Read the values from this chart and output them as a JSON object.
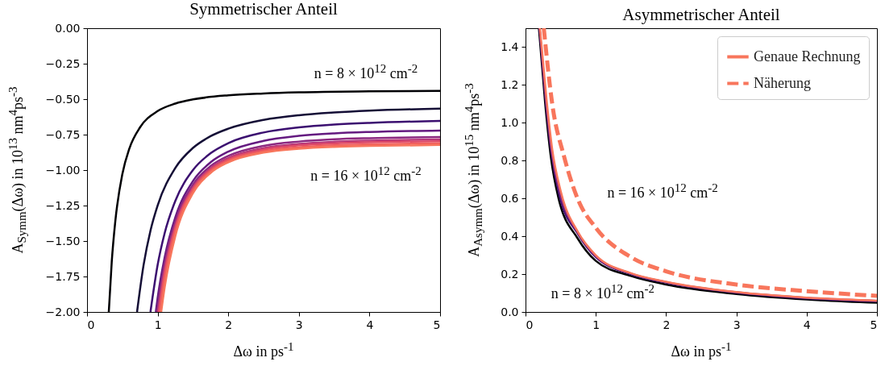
{
  "chart_data": [
    {
      "type": "line",
      "title": "Symmetrischer Anteil",
      "xlabel": "Δω in ps$^{-1}$",
      "ylabel": "A$_{Symm}$(Δω) in 10$^{13}$ nm$^{4}$ps$^{-3}$",
      "xlim": [
        0,
        5
      ],
      "ylim": [
        -2,
        0
      ],
      "xticks": [
        0,
        1,
        2,
        3,
        4,
        5
      ],
      "yticks": [
        {
          "value": 0,
          "label": "0.00"
        },
        {
          "value": -0.25,
          "label": "−0.25"
        },
        {
          "value": -0.5,
          "label": "−0.50"
        },
        {
          "value": -0.75,
          "label": "−0.75"
        },
        {
          "value": -1,
          "label": "−1.00"
        },
        {
          "value": -1.25,
          "label": "−1.25"
        },
        {
          "value": -1.5,
          "label": "−1.50"
        },
        {
          "value": -1.75,
          "label": "−1.75"
        },
        {
          "value": -2,
          "label": "−2.00"
        }
      ],
      "series": [
        {
          "color": "#000004",
          "x": [
            0.308,
            0.35,
            0.4,
            0.5,
            0.6,
            0.75,
            1,
            1.25,
            1.5,
            2,
            2.5,
            3,
            4,
            5
          ],
          "values": [
            -2.0,
            -1.644,
            -1.361,
            -1.028,
            -0.847,
            -0.699,
            -0.584,
            -0.531,
            -0.502,
            -0.473,
            -0.46,
            -0.452,
            -0.445,
            -0.442
          ]
        },
        {
          "color": "#140e36",
          "x": [
            0.708,
            0.8,
            0.9,
            1,
            1.25,
            1.5,
            1.75,
            2,
            2.5,
            3,
            3.5,
            4,
            5
          ],
          "values": [
            -2.0,
            -1.671,
            -1.423,
            -1.249,
            -0.985,
            -0.844,
            -0.761,
            -0.708,
            -0.646,
            -0.613,
            -0.594,
            -0.581,
            -0.567
          ]
        },
        {
          "color": "#3b0f70",
          "x": [
            0.898,
            1,
            1.1,
            1.25,
            1.5,
            1.75,
            2,
            2.5,
            3,
            3.5,
            4,
            5
          ],
          "values": [
            -2.0,
            -1.668,
            -1.443,
            -1.217,
            -1.0,
            -0.881,
            -0.81,
            -0.735,
            -0.699,
            -0.679,
            -0.667,
            -0.654
          ]
        },
        {
          "color": "#641a80",
          "x": [
            0.974,
            1,
            1.1,
            1.25,
            1.5,
            1.75,
            2,
            2.5,
            3,
            3.5,
            4,
            5
          ],
          "values": [
            -2.0,
            -1.9,
            -1.613,
            -1.333,
            -1.077,
            -0.945,
            -0.87,
            -0.794,
            -0.759,
            -0.741,
            -0.731,
            -0.721
          ]
        },
        {
          "color": "#8c2981",
          "x": [
            0.99,
            1.1,
            1.25,
            1.5,
            1.75,
            2,
            2.5,
            3,
            3.5,
            4,
            5
          ],
          "values": [
            -2.0,
            -1.653,
            -1.362,
            -1.103,
            -0.972,
            -0.9,
            -0.829,
            -0.799,
            -0.783,
            -0.775,
            -0.767
          ]
        },
        {
          "color": "#b73779",
          "x": [
            1.005,
            1.1,
            1.25,
            1.5,
            1.75,
            2,
            2.5,
            3,
            3.5,
            4,
            5
          ],
          "values": [
            -2.0,
            -1.696,
            -1.39,
            -1.121,
            -0.988,
            -0.915,
            -0.845,
            -0.815,
            -0.8,
            -0.792,
            -0.784
          ]
        },
        {
          "color": "#de4968",
          "x": [
            1.015,
            1.1,
            1.25,
            1.5,
            1.75,
            2,
            2.5,
            3,
            3.5,
            4,
            5
          ],
          "values": [
            -2.0,
            -1.72,
            -1.406,
            -1.132,
            -0.997,
            -0.925,
            -0.856,
            -0.826,
            -0.812,
            -0.804,
            -0.797
          ]
        },
        {
          "color": "#f1605d",
          "x": [
            1.03,
            1.1,
            1.25,
            1.5,
            1.75,
            2,
            2.5,
            3,
            3.5,
            4,
            5
          ],
          "values": [
            -2.0,
            -1.763,
            -1.43,
            -1.145,
            -1.008,
            -0.935,
            -0.867,
            -0.839,
            -0.825,
            -0.818,
            -0.811
          ]
        },
        {
          "color": "#f8765c",
          "x": [
            1.05,
            1.1,
            1.25,
            1.5,
            1.75,
            2,
            2.5,
            3,
            3.5,
            4,
            5
          ],
          "values": [
            -2.0,
            -1.824,
            -1.465,
            -1.163,
            -1.02,
            -0.945,
            -0.877,
            -0.849,
            -0.836,
            -0.83,
            -0.823
          ]
        }
      ],
      "annotations": [
        "n = 8 × 10$^{12}$ cm$^{-2}$",
        "n = 16 × 10$^{12}$ cm$^{-2}$"
      ]
    },
    {
      "type": "line",
      "title": "Asymmetrischer Anteil",
      "xlabel": "Δω in ps$^{-1}$",
      "ylabel": "A$_{Asymm}$(Δω) in 10$^{15}$ nm$^{4}$ps$^{-3}$",
      "xlim": [
        0,
        5
      ],
      "ylim": [
        0,
        1.5
      ],
      "xticks": [
        0,
        1,
        2,
        3,
        4,
        5
      ],
      "yticks": [
        {
          "value": 0,
          "label": "0.0"
        },
        0.2,
        0.4,
        0.6,
        0.8,
        {
          "value": 1,
          "label": "1.0"
        },
        1.2,
        1.4
      ],
      "legend": "top right",
      "series": [
        {
          "color": "#000004",
          "x": [
            0.19,
            0.28,
            0.36,
            0.47,
            0.74,
            1,
            1.5,
            2,
            3,
            4,
            5
          ],
          "values": [
            1.5,
            1.1,
            0.82,
            0.6,
            0.39,
            0.27,
            0.19,
            0.145,
            0.095,
            0.066,
            0.049
          ]
        },
        {
          "color": "#3b0f70",
          "x": [
            0.2,
            0.29,
            0.37,
            0.48,
            0.75,
            1,
            1.5,
            2,
            3,
            4,
            5
          ],
          "values": [
            1.5,
            1.11,
            0.84,
            0.62,
            0.41,
            0.29,
            0.2,
            0.155,
            0.102,
            0.072,
            0.056
          ]
        },
        {
          "color": "#8c2981",
          "x": [
            0.2,
            0.29,
            0.37,
            0.49,
            0.75,
            1,
            1.5,
            2,
            3,
            4,
            5
          ],
          "values": [
            1.5,
            1.12,
            0.85,
            0.63,
            0.415,
            0.295,
            0.203,
            0.158,
            0.104,
            0.075,
            0.059
          ]
        },
        {
          "name": "Genaue Rechnung",
          "color": "#f8765c",
          "line_style": "solid",
          "x": [
            0.205,
            0.3,
            0.38,
            0.5,
            0.75,
            1,
            1.5,
            2,
            3,
            4,
            5
          ],
          "values": [
            1.5,
            1.12,
            0.86,
            0.64,
            0.42,
            0.3,
            0.205,
            0.16,
            0.105,
            0.076,
            0.06
          ]
        },
        {
          "name": "Näherung",
          "color": "#f8765c",
          "line_style": "dashed",
          "x": [
            0.26,
            0.38,
            0.55,
            0.74,
            1,
            1.5,
            2,
            3,
            4,
            5
          ],
          "values": [
            1.5,
            1.1,
            0.82,
            0.6,
            0.445,
            0.29,
            0.215,
            0.145,
            0.11,
            0.085
          ]
        }
      ],
      "annotations": [
        "n = 16 × 10$^{12}$ cm$^{-2}$",
        "n = 8 × 10$^{12}$ cm$^{-2}$"
      ]
    }
  ]
}
